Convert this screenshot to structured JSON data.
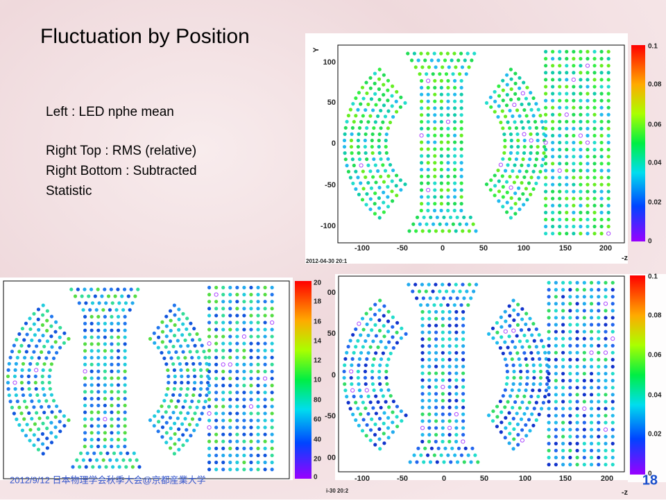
{
  "title": "Fluctuation by Position",
  "description": [
    "Left : LED nphe mean",
    "Right Top : RMS (relative)",
    "Right Bottom : Subtracted",
    "Statistic"
  ],
  "footer": "2012/9/12 日本物理学会秋季大会@京都産業大学",
  "page_number": "18",
  "plots": {
    "top_right": {
      "y_label": "Y",
      "x_label": "-z",
      "timestamp": "2012-04-30 20:1",
      "yticks": [
        "100",
        "50",
        "0",
        "-50",
        "-100"
      ],
      "xticks": [
        "-100",
        "-50",
        "0",
        "50",
        "100",
        "150",
        "200"
      ],
      "colorbar": [
        "0.1",
        "0.08",
        "0.06",
        "0.04",
        "0.02",
        "0"
      ]
    },
    "bottom_left": {
      "colorbar": [
        "20",
        "18",
        "16",
        "14",
        "12",
        "10",
        "80",
        "60",
        "40",
        "20",
        "0"
      ]
    },
    "bottom_right": {
      "x_label": "-z",
      "timestamp": "i-30 20:2",
      "yticks": [
        "00",
        "50",
        "0",
        "-50",
        "00"
      ],
      "xticks": [
        "-100",
        "-50",
        "0",
        "50",
        "100",
        "150",
        "200"
      ],
      "colorbar": [
        "0.1",
        "0.08",
        "0.06",
        "0.04",
        "0.02",
        "0"
      ]
    }
  }
}
